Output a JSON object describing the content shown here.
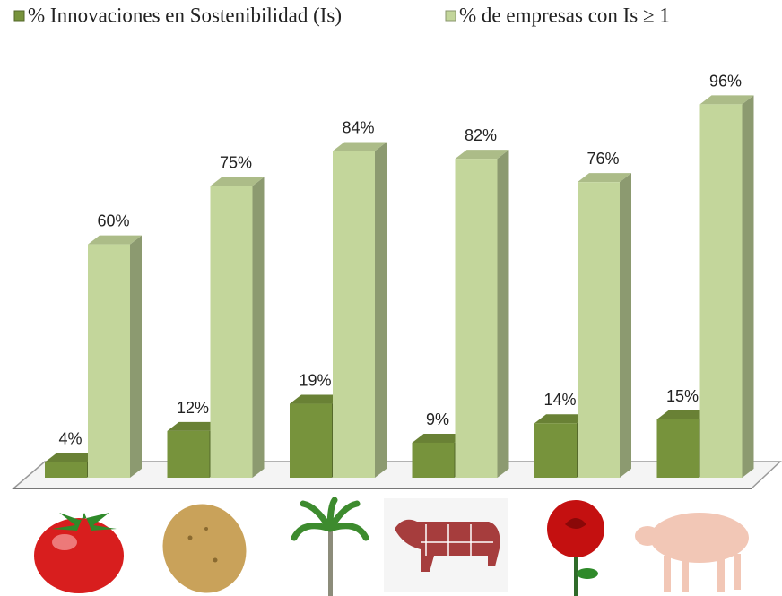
{
  "chart_data": {
    "type": "bar3d",
    "categories": [
      null,
      null,
      null,
      null,
      null,
      null
    ],
    "series": [
      {
        "name": "% Innovaciones en Sostenibilidad (Is)",
        "color": "#77933c",
        "values": [
          4,
          12,
          19,
          9,
          14,
          15
        ],
        "value_labels": [
          "4%",
          "12%",
          "19%",
          "9%",
          "14%",
          "15%"
        ]
      },
      {
        "name": "% de empresas con  Is ≥ 1",
        "color": "#c3d69b",
        "values": [
          60,
          75,
          84,
          82,
          76,
          96
        ],
        "value_labels": [
          "60%",
          "75%",
          "84%",
          "82%",
          "76%",
          "96%"
        ]
      }
    ]
  }
}
